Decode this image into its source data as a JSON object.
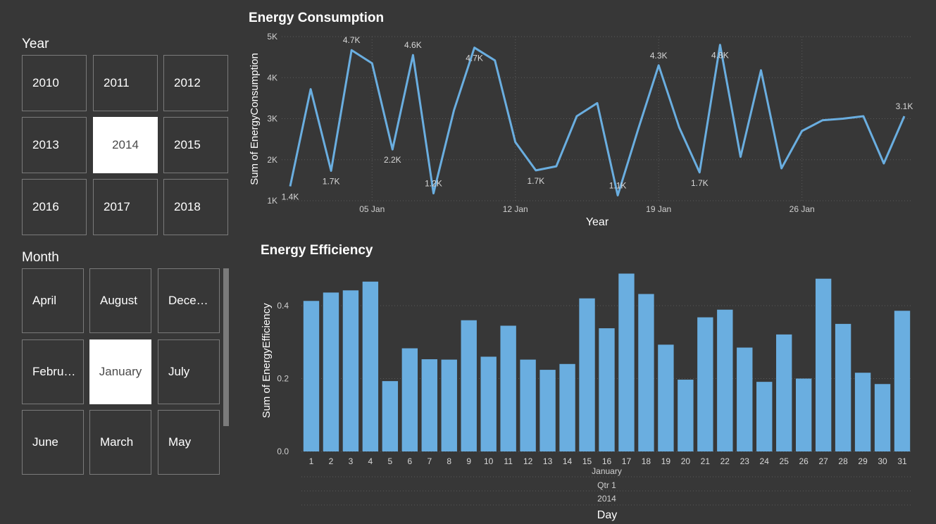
{
  "year_slicer": {
    "title": "Year",
    "options": [
      "2010",
      "2011",
      "2012",
      "2013",
      "2014",
      "2015",
      "2016",
      "2017",
      "2018"
    ],
    "selected": "2014"
  },
  "month_slicer": {
    "title": "Month",
    "options": [
      "April",
      "August",
      "Dece…",
      "Febru…",
      "January",
      "July",
      "June",
      "March",
      "May"
    ],
    "selected": "January"
  },
  "colors": {
    "background": "#373737",
    "series": "#6aaee0",
    "selected_tile": "#ffffff"
  },
  "line_chart_title": "Energy Consumption",
  "bar_chart_title": "Energy Efficiency",
  "chart_data": [
    {
      "type": "line",
      "title": "Energy Consumption",
      "xlabel": "Year",
      "ylabel": "Sum of EnergyConsumption",
      "x_ticks": [
        "05 Jan",
        "12 Jan",
        "19 Jan",
        "26 Jan"
      ],
      "y_ticks": [
        "1K",
        "2K",
        "3K",
        "4K",
        "5K"
      ],
      "ylim": [
        1000,
        5000
      ],
      "grid": true,
      "x": [
        "2014-01-01",
        "2014-01-02",
        "2014-01-03",
        "2014-01-04",
        "2014-01-05",
        "2014-01-06",
        "2014-01-07",
        "2014-01-08",
        "2014-01-09",
        "2014-01-10",
        "2014-01-11",
        "2014-01-12",
        "2014-01-13",
        "2014-01-14",
        "2014-01-15",
        "2014-01-16",
        "2014-01-17",
        "2014-01-18",
        "2014-01-19",
        "2014-01-20",
        "2014-01-21",
        "2014-01-22",
        "2014-01-23",
        "2014-01-24",
        "2014-01-25",
        "2014-01-26",
        "2014-01-27",
        "2014-01-28",
        "2014-01-29",
        "2014-01-30",
        "2014-01-31"
      ],
      "values": [
        1350,
        3720,
        1730,
        4670,
        4350,
        2250,
        4550,
        1180,
        3200,
        4730,
        4420,
        2430,
        1740,
        1840,
        3060,
        3380,
        1130,
        2740,
        4300,
        2790,
        1690,
        4800,
        2070,
        4180,
        1790,
        2700,
        2960,
        3000,
        3060,
        1910,
        3060
      ],
      "data_labels": [
        {
          "x": "2014-01-01",
          "text": "1.4K",
          "pos": "below"
        },
        {
          "x": "2014-01-03",
          "text": "1.7K",
          "pos": "below"
        },
        {
          "x": "2014-01-04",
          "text": "4.7K",
          "pos": "above"
        },
        {
          "x": "2014-01-06",
          "text": "2.2K",
          "pos": "below"
        },
        {
          "x": "2014-01-07",
          "text": "4.6K",
          "pos": "above"
        },
        {
          "x": "2014-01-08",
          "text": "1.2K",
          "pos": "above"
        },
        {
          "x": "2014-01-10",
          "text": "4.7K",
          "pos": "below"
        },
        {
          "x": "2014-01-13",
          "text": "1.7K",
          "pos": "below"
        },
        {
          "x": "2014-01-17",
          "text": "1.1K",
          "pos": "above"
        },
        {
          "x": "2014-01-19",
          "text": "4.3K",
          "pos": "above"
        },
        {
          "x": "2014-01-21",
          "text": "1.7K",
          "pos": "below"
        },
        {
          "x": "2014-01-22",
          "text": "4.8K",
          "pos": "below"
        },
        {
          "x": "2014-01-31",
          "text": "3.1K",
          "pos": "above"
        }
      ]
    },
    {
      "type": "bar",
      "title": "Energy Efficiency",
      "xlabel": "Day",
      "ylabel": "Sum of EnergyEfficiency",
      "categories": [
        "1",
        "2",
        "3",
        "4",
        "5",
        "6",
        "7",
        "8",
        "9",
        "10",
        "11",
        "12",
        "13",
        "14",
        "15",
        "16",
        "17",
        "18",
        "19",
        "20",
        "21",
        "22",
        "23",
        "24",
        "25",
        "26",
        "27",
        "28",
        "29",
        "30",
        "31"
      ],
      "values": [
        0.413,
        0.436,
        0.442,
        0.466,
        0.193,
        0.283,
        0.253,
        0.252,
        0.36,
        0.26,
        0.345,
        0.252,
        0.224,
        0.24,
        0.42,
        0.338,
        0.488,
        0.432,
        0.293,
        0.197,
        0.368,
        0.389,
        0.285,
        0.191,
        0.321,
        0.2,
        0.474,
        0.35,
        0.216,
        0.185,
        0.386
      ],
      "y_ticks": [
        "0.0",
        "0.2",
        "0.4"
      ],
      "ylim": [
        0,
        0.5
      ],
      "grid": true,
      "hierarchy_labels": [
        "January",
        "Qtr 1",
        "2014"
      ]
    }
  ]
}
